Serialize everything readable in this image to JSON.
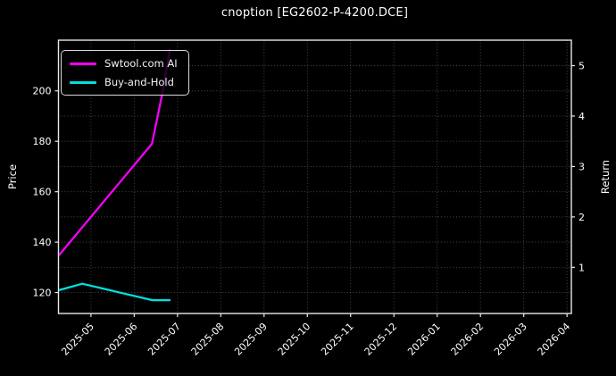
{
  "chart_data": {
    "type": "line",
    "title": "cnoption [EG2602-P-4200.DCE]",
    "ylabel_left": "Price",
    "ylabel_right": "Return",
    "x_tick_labels": [
      "2025-05",
      "2025-06",
      "2025-07",
      "2025-08",
      "2025-09",
      "2025-10",
      "2025-11",
      "2025-12",
      "2026-01",
      "2026-02",
      "2026-03",
      "2026-04"
    ],
    "left_y_ticks": [
      120,
      140,
      160,
      180,
      200
    ],
    "right_y_ticks": [
      1,
      2,
      3,
      4,
      5
    ],
    "right_axis_alignment": "Return r aligns with Price = 110 + 20*r",
    "price_ylim": [
      111.7,
      220.1
    ],
    "xlim_month_offset": [
      -0.75,
      11.1
    ],
    "grid": {
      "vertical": "one line per month tick",
      "horizontal_price_step": 10,
      "line_style": "dotted"
    },
    "legend_position": "upper left",
    "series": [
      {
        "name": "Swtool.com AI",
        "color": "#f500f5",
        "points": [
          {
            "date": "2025-04-09",
            "month_offset": -0.73,
            "price": 135,
            "return": 1.25
          },
          {
            "date": "2025-06-13",
            "month_offset": 1.41,
            "price": 179,
            "return": 3.45
          },
          {
            "date": "2025-06-20",
            "month_offset": 1.65,
            "price": 199,
            "return": 4.45
          },
          {
            "date": "2025-06-25",
            "month_offset": 1.82,
            "price": 216,
            "return": 5.3
          }
        ]
      },
      {
        "name": "Buy-and-Hold",
        "color": "#00e0e0",
        "points": [
          {
            "date": "2025-04-09",
            "month_offset": -0.73,
            "price": 121,
            "return": 0.55
          },
          {
            "date": "2025-04-25",
            "month_offset": -0.2,
            "price": 123.5,
            "return": 0.68
          },
          {
            "date": "2025-06-13",
            "month_offset": 1.41,
            "price": 117,
            "return": 0.35
          },
          {
            "date": "2025-06-25",
            "month_offset": 1.82,
            "price": 117,
            "return": 0.35
          }
        ]
      }
    ],
    "colors": {
      "background": "#000000",
      "axes": "#e8e8e8",
      "grid": "#4f4f4f",
      "text": "#ffffff"
    }
  }
}
